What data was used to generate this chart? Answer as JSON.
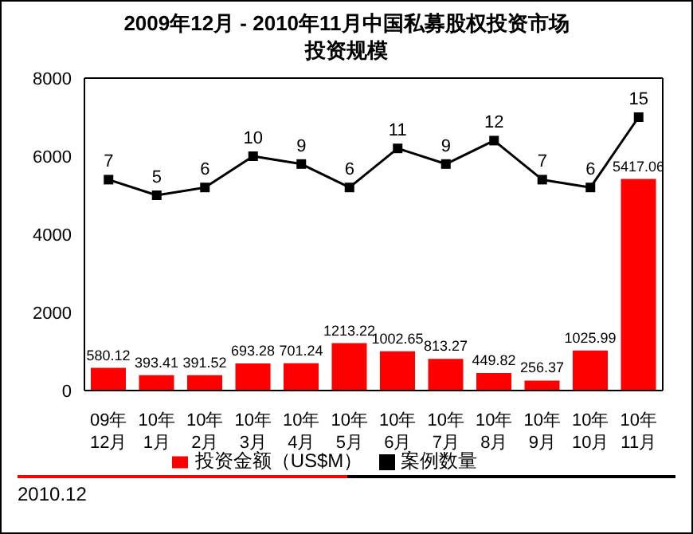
{
  "chart_data": {
    "type": "bar",
    "title": "2009年12月 - 2010年11月中国私募股权投资市场",
    "subtitle": "投资规模",
    "categories": [
      "09年\n12月",
      "10年\n1月",
      "10年\n2月",
      "10年\n3月",
      "10年\n4月",
      "10年\n5月",
      "10年\n6月",
      "10年\n7月",
      "10年\n8月",
      "10年\n9月",
      "10年\n10月",
      "10年\n11月"
    ],
    "series": [
      {
        "name": "投资金额（US$M）",
        "color": "#ff0000",
        "values": [
          580.12,
          393.41,
          391.52,
          693.28,
          701.24,
          1213.22,
          1002.65,
          813.27,
          449.82,
          256.37,
          1025.99,
          5417.06
        ]
      },
      {
        "name": "案例数量",
        "type": "line",
        "axis": "y2",
        "color": "#000000",
        "values": [
          7,
          5,
          6,
          10,
          9,
          6,
          11,
          9,
          12,
          7,
          6,
          15
        ]
      }
    ],
    "ylim": [
      0,
      8000
    ],
    "yticks": [
      0,
      2000,
      4000,
      6000,
      8000
    ],
    "y2lim": [
      -20,
      20
    ],
    "data_labels": true,
    "grid": false,
    "legend": "bottom",
    "marker": "square",
    "line_style": "solid",
    "annotations": [
      "2010.12"
    ]
  }
}
